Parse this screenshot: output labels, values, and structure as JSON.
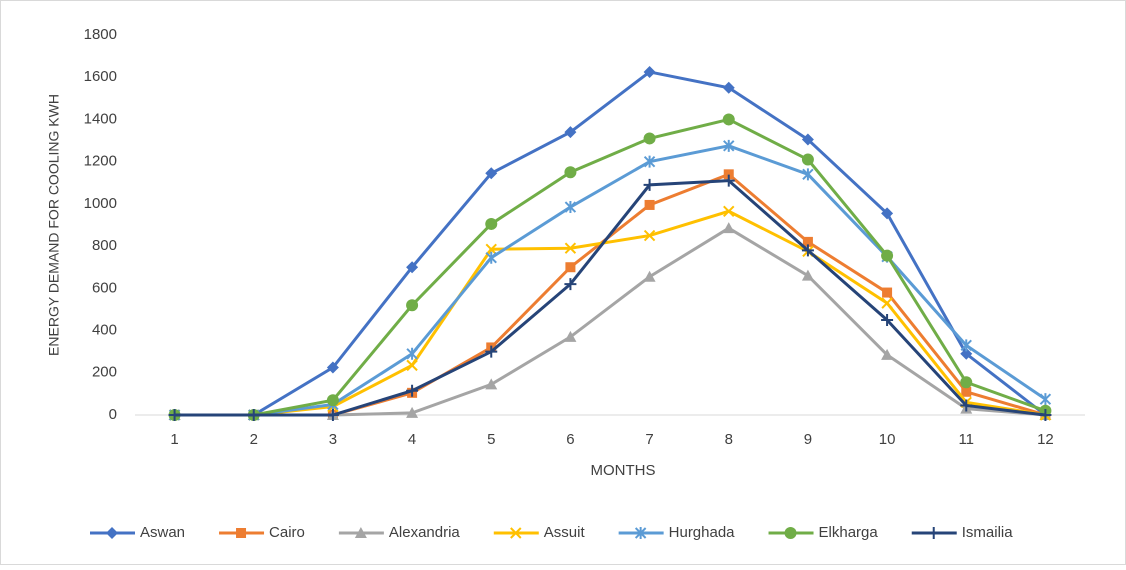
{
  "chart_data": {
    "type": "line",
    "x_label": "MONTHS",
    "y_label": "ENERGY DEMAND FOR COOLING KWH",
    "categories": [
      "1",
      "2",
      "3",
      "4",
      "5",
      "6",
      "7",
      "8",
      "9",
      "10",
      "11",
      "12"
    ],
    "ylim": [
      0,
      1800
    ],
    "yticks": [
      0,
      200,
      400,
      600,
      800,
      1000,
      1200,
      1400,
      1600,
      1800
    ],
    "grid": false,
    "legend": "bottom",
    "series": [
      {
        "name": "Aswan",
        "color": "#4472c4",
        "marker": "diamond",
        "values": [
          0,
          0,
          225,
          700,
          1145,
          1340,
          1625,
          1550,
          1305,
          955,
          290,
          0
        ]
      },
      {
        "name": "Cairo",
        "color": "#ed7d31",
        "marker": "square",
        "values": [
          0,
          0,
          0,
          105,
          320,
          700,
          995,
          1140,
          820,
          580,
          110,
          0
        ]
      },
      {
        "name": "Alexandria",
        "color": "#a5a5a5",
        "marker": "triangle",
        "values": [
          0,
          0,
          0,
          10,
          145,
          370,
          655,
          885,
          660,
          285,
          30,
          0
        ]
      },
      {
        "name": "Assuit",
        "color": "#ffc000",
        "marker": "x",
        "values": [
          0,
          0,
          40,
          235,
          785,
          790,
          850,
          965,
          775,
          530,
          60,
          0
        ]
      },
      {
        "name": "Hurghada",
        "color": "#5b9bd5",
        "marker": "star",
        "values": [
          0,
          0,
          50,
          290,
          745,
          985,
          1200,
          1275,
          1140,
          750,
          330,
          75
        ]
      },
      {
        "name": "Elkharga",
        "color": "#70ad47",
        "marker": "circle",
        "values": [
          0,
          0,
          70,
          520,
          905,
          1150,
          1310,
          1400,
          1210,
          755,
          155,
          20
        ]
      },
      {
        "name": "Ismailia",
        "color": "#264478",
        "marker": "plus",
        "values": [
          0,
          0,
          0,
          115,
          300,
          620,
          1090,
          1110,
          780,
          450,
          45,
          0
        ]
      }
    ]
  }
}
